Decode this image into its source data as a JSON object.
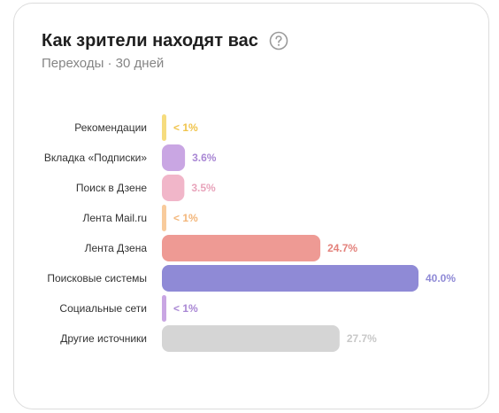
{
  "header": {
    "title": "Как зрители находят вас",
    "subtitle": "Переходы · 30 дней",
    "help_icon": "question-circle-icon"
  },
  "chart_data": {
    "type": "bar",
    "orientation": "horizontal",
    "title": "Как зрители находят вас",
    "subtitle": "Переходы · 30 дней",
    "xlabel": "",
    "ylabel": "",
    "xlim": [
      0,
      40
    ],
    "grid": false,
    "legend": "none",
    "categories": [
      "Рекомендации",
      "Вкладка «Подписки»",
      "Поиск в Дзене",
      "Лента Mail.ru",
      "Лента Дзена",
      "Поисковые системы",
      "Социальные сети",
      "Другие источники"
    ],
    "values": [
      0.3,
      3.6,
      3.5,
      0.3,
      24.7,
      40.0,
      0.3,
      27.7
    ],
    "value_labels": [
      "< 1%",
      "3.6%",
      "3.5%",
      "< 1%",
      "24.7%",
      "40.0%",
      "< 1%",
      "27.7%"
    ],
    "bar_colors": [
      "#f6dc7e",
      "#c9a6e3",
      "#f1b6c9",
      "#f8cb9c",
      "#ee9a94",
      "#8f8ad6",
      "#c9a6e3",
      "#d5d5d5"
    ],
    "label_colors": [
      "#f0c44c",
      "#a987d4",
      "#e8a4bb",
      "#f3b67a",
      "#e3817b",
      "#8f8ad6",
      "#a987d4",
      "#c8c8c8"
    ]
  }
}
